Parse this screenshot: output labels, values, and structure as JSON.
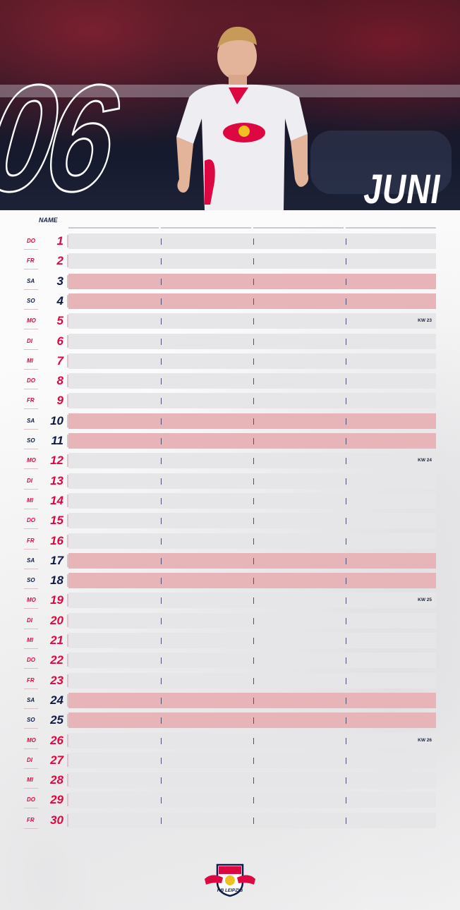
{
  "calendar": {
    "month_number": "06",
    "month_name": "JUNI",
    "name_header": "NAME",
    "days": [
      {
        "wd": "DO",
        "day": "1",
        "weekend": false,
        "kw": ""
      },
      {
        "wd": "FR",
        "day": "2",
        "weekend": false,
        "kw": ""
      },
      {
        "wd": "SA",
        "day": "3",
        "weekend": true,
        "kw": ""
      },
      {
        "wd": "SO",
        "day": "4",
        "weekend": true,
        "kw": ""
      },
      {
        "wd": "MO",
        "day": "5",
        "weekend": false,
        "kw": "KW 23"
      },
      {
        "wd": "DI",
        "day": "6",
        "weekend": false,
        "kw": ""
      },
      {
        "wd": "MI",
        "day": "7",
        "weekend": false,
        "kw": ""
      },
      {
        "wd": "DO",
        "day": "8",
        "weekend": false,
        "kw": ""
      },
      {
        "wd": "FR",
        "day": "9",
        "weekend": false,
        "kw": ""
      },
      {
        "wd": "SA",
        "day": "10",
        "weekend": true,
        "kw": ""
      },
      {
        "wd": "SO",
        "day": "11",
        "weekend": true,
        "kw": ""
      },
      {
        "wd": "MO",
        "day": "12",
        "weekend": false,
        "kw": "KW 24"
      },
      {
        "wd": "DI",
        "day": "13",
        "weekend": false,
        "kw": ""
      },
      {
        "wd": "MI",
        "day": "14",
        "weekend": false,
        "kw": ""
      },
      {
        "wd": "DO",
        "day": "15",
        "weekend": false,
        "kw": ""
      },
      {
        "wd": "FR",
        "day": "16",
        "weekend": false,
        "kw": ""
      },
      {
        "wd": "SA",
        "day": "17",
        "weekend": true,
        "kw": ""
      },
      {
        "wd": "SO",
        "day": "18",
        "weekend": true,
        "kw": ""
      },
      {
        "wd": "MO",
        "day": "19",
        "weekend": false,
        "kw": "KW 25"
      },
      {
        "wd": "DI",
        "day": "20",
        "weekend": false,
        "kw": ""
      },
      {
        "wd": "MI",
        "day": "21",
        "weekend": false,
        "kw": ""
      },
      {
        "wd": "DO",
        "day": "22",
        "weekend": false,
        "kw": ""
      },
      {
        "wd": "FR",
        "day": "23",
        "weekend": false,
        "kw": ""
      },
      {
        "wd": "SA",
        "day": "24",
        "weekend": true,
        "kw": ""
      },
      {
        "wd": "SO",
        "day": "25",
        "weekend": true,
        "kw": ""
      },
      {
        "wd": "MO",
        "day": "26",
        "weekend": false,
        "kw": "KW 26"
      },
      {
        "wd": "DI",
        "day": "27",
        "weekend": false,
        "kw": ""
      },
      {
        "wd": "MI",
        "day": "28",
        "weekend": false,
        "kw": ""
      },
      {
        "wd": "DO",
        "day": "29",
        "weekend": false,
        "kw": ""
      },
      {
        "wd": "FR",
        "day": "30",
        "weekend": false,
        "kw": ""
      }
    ]
  },
  "logo": {
    "text": "RB LEIPZIG",
    "icon": "rb-leipzig-bulls-crest-icon"
  },
  "colors": {
    "red": "#dd0741",
    "navy": "#0f1b46",
    "weekend_fill": "#e7b5b8",
    "weekday_fill": "#e6e6e8"
  }
}
